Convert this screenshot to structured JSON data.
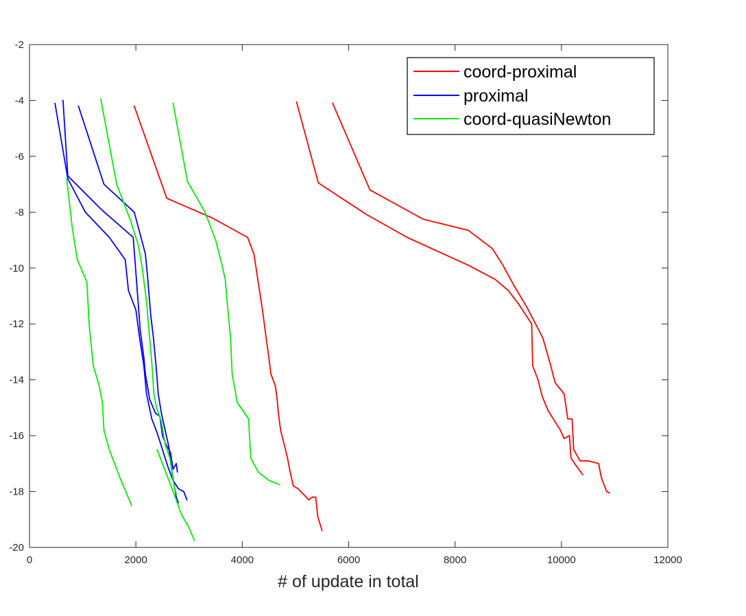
{
  "chart_data": {
    "type": "line",
    "title": "",
    "xlabel": "# of update in total",
    "ylabel": "",
    "xlim": [
      0,
      12000
    ],
    "ylim": [
      -20,
      -2
    ],
    "xticks": [
      0,
      2000,
      4000,
      6000,
      8000,
      10000,
      12000
    ],
    "yticks": [
      -2,
      -4,
      -6,
      -8,
      -10,
      -12,
      -14,
      -16,
      -18,
      -20
    ],
    "xtick_labels": [
      "0",
      "2000",
      "4000",
      "6000",
      "8000",
      "10000",
      "12000"
    ],
    "ytick_labels": [
      "-2",
      "-4",
      "-6",
      "-8",
      "-10",
      "-12",
      "-14",
      "-16",
      "-18",
      "-20"
    ],
    "grid": false,
    "legend_position": "top-right",
    "colors": {
      "coord-proximal": "#ff0000",
      "proximal": "#0000ff",
      "coord-quasiNewton": "#00ee00"
    },
    "series": [
      {
        "name": "coord-proximal",
        "color": "#ff0000",
        "points": [
          [
            1970,
            -4.2
          ],
          [
            2580,
            -7.5
          ],
          [
            3430,
            -8.2
          ],
          [
            4100,
            -8.9
          ],
          [
            4220,
            -9.5
          ],
          [
            4300,
            -10.5
          ],
          [
            4380,
            -11.5
          ],
          [
            4450,
            -12.5
          ],
          [
            4500,
            -13.2
          ],
          [
            4540,
            -13.8
          ],
          [
            4620,
            -14.2
          ],
          [
            4650,
            -14.6
          ],
          [
            4680,
            -15.2
          ],
          [
            4720,
            -15.8
          ],
          [
            4800,
            -16.4
          ],
          [
            4850,
            -16.8
          ],
          [
            4900,
            -17.3
          ],
          [
            4960,
            -17.8
          ],
          [
            5050,
            -17.9
          ],
          [
            5150,
            -18.1
          ],
          [
            5250,
            -18.3
          ],
          [
            5320,
            -18.2
          ],
          [
            5380,
            -18.2
          ],
          [
            5420,
            -18.9
          ],
          [
            5500,
            -19.4
          ]
        ]
      },
      {
        "name": "coord-proximal",
        "color": "#ff0000",
        "points": [
          [
            5020,
            -4.05
          ],
          [
            5430,
            -6.95
          ],
          [
            6350,
            -8.1
          ],
          [
            7100,
            -8.9
          ],
          [
            8250,
            -9.9
          ],
          [
            8750,
            -10.4
          ],
          [
            9000,
            -10.8
          ],
          [
            9200,
            -11.3
          ],
          [
            9440,
            -12.0
          ],
          [
            9460,
            -13.5
          ],
          [
            9560,
            -14.0
          ],
          [
            9640,
            -14.6
          ],
          [
            9750,
            -15.1
          ],
          [
            9880,
            -15.5
          ],
          [
            9980,
            -15.8
          ],
          [
            10050,
            -16.1
          ],
          [
            10150,
            -16.0
          ],
          [
            10180,
            -16.8
          ],
          [
            10250,
            -17.0
          ],
          [
            10400,
            -17.4
          ]
        ]
      },
      {
        "name": "coord-proximal",
        "color": "#ff0000",
        "points": [
          [
            5700,
            -4.1
          ],
          [
            6400,
            -7.2
          ],
          [
            7400,
            -8.25
          ],
          [
            8250,
            -8.65
          ],
          [
            8700,
            -9.3
          ],
          [
            8900,
            -9.9
          ],
          [
            9100,
            -10.6
          ],
          [
            9350,
            -11.4
          ],
          [
            9650,
            -12.5
          ],
          [
            9800,
            -13.5
          ],
          [
            9880,
            -14.1
          ],
          [
            10050,
            -14.5
          ],
          [
            10120,
            -15.4
          ],
          [
            10200,
            -15.4
          ],
          [
            10230,
            -16.5
          ],
          [
            10350,
            -16.9
          ],
          [
            10500,
            -16.9
          ],
          [
            10700,
            -17.0
          ],
          [
            10750,
            -17.5
          ],
          [
            10850,
            -18.0
          ],
          [
            10900,
            -18.05
          ]
        ]
      },
      {
        "name": "proximal",
        "color": "#0000ff",
        "points": [
          [
            480,
            -4.1
          ],
          [
            720,
            -6.8
          ],
          [
            1050,
            -8.0
          ],
          [
            1500,
            -8.9
          ],
          [
            1800,
            -9.7
          ],
          [
            1860,
            -10.8
          ],
          [
            2000,
            -11.5
          ],
          [
            2070,
            -12.5
          ],
          [
            2150,
            -13.5
          ],
          [
            2200,
            -14.5
          ],
          [
            2300,
            -15.4
          ],
          [
            2400,
            -15.9
          ],
          [
            2500,
            -16.5
          ],
          [
            2600,
            -17.1
          ],
          [
            2700,
            -17.6
          ],
          [
            2800,
            -17.9
          ],
          [
            2900,
            -18.0
          ],
          [
            2960,
            -18.3
          ]
        ]
      },
      {
        "name": "proximal",
        "color": "#0000ff",
        "points": [
          [
            630,
            -4.0
          ],
          [
            720,
            -6.7
          ],
          [
            1350,
            -7.9
          ],
          [
            1950,
            -8.9
          ],
          [
            2050,
            -11.4
          ],
          [
            2080,
            -12.2
          ],
          [
            2150,
            -13.2
          ],
          [
            2180,
            -13.8
          ],
          [
            2260,
            -14.7
          ],
          [
            2370,
            -15.2
          ],
          [
            2450,
            -15.3
          ],
          [
            2500,
            -16.0
          ],
          [
            2560,
            -16.3
          ],
          [
            2650,
            -16.6
          ],
          [
            2700,
            -17.2
          ],
          [
            2760,
            -17.0
          ],
          [
            2780,
            -17.3
          ]
        ]
      },
      {
        "name": "proximal",
        "color": "#0000ff",
        "points": [
          [
            920,
            -4.2
          ],
          [
            1400,
            -7.0
          ],
          [
            1970,
            -8.0
          ],
          [
            2180,
            -9.5
          ],
          [
            2220,
            -10.3
          ],
          [
            2280,
            -11.7
          ],
          [
            2330,
            -12.5
          ],
          [
            2380,
            -13.5
          ],
          [
            2420,
            -14.5
          ],
          [
            2480,
            -15.2
          ],
          [
            2550,
            -15.8
          ],
          [
            2620,
            -16.4
          ],
          [
            2680,
            -17.3
          ],
          [
            2760,
            -18.2
          ],
          [
            2800,
            -18.4
          ]
        ]
      },
      {
        "name": "coord-quasiNewton",
        "color": "#00ee00",
        "points": [
          [
            700,
            -6.8
          ],
          [
            800,
            -8.5
          ],
          [
            900,
            -9.7
          ],
          [
            1080,
            -10.5
          ],
          [
            1120,
            -12.0
          ],
          [
            1200,
            -13.5
          ],
          [
            1310,
            -14.2
          ],
          [
            1370,
            -14.8
          ],
          [
            1400,
            -15.8
          ],
          [
            1500,
            -16.5
          ],
          [
            1700,
            -17.5
          ],
          [
            1920,
            -18.5
          ]
        ]
      },
      {
        "name": "coord-quasiNewton",
        "color": "#00ee00",
        "points": [
          [
            1340,
            -3.95
          ],
          [
            1640,
            -7.0
          ],
          [
            1900,
            -8.3
          ],
          [
            2050,
            -9.2
          ],
          [
            2120,
            -10.0
          ],
          [
            2200,
            -11.2
          ],
          [
            2260,
            -12.5
          ],
          [
            2300,
            -13.4
          ],
          [
            2340,
            -14.5
          ],
          [
            2390,
            -15.0
          ],
          [
            2480,
            -15.5
          ],
          [
            2550,
            -16.3
          ],
          [
            2640,
            -16.8
          ],
          [
            2700,
            -17.6
          ],
          [
            2760,
            -18.1
          ]
        ]
      },
      {
        "name": "coord-quasiNewton",
        "color": "#00ee00",
        "points": [
          [
            2700,
            -4.1
          ],
          [
            2970,
            -6.9
          ],
          [
            3300,
            -8.0
          ],
          [
            3500,
            -9.0
          ],
          [
            3620,
            -9.9
          ],
          [
            3680,
            -10.4
          ],
          [
            3720,
            -11.3
          ],
          [
            3780,
            -12.5
          ],
          [
            3810,
            -13.8
          ],
          [
            3870,
            -14.4
          ],
          [
            3900,
            -14.8
          ],
          [
            4120,
            -15.4
          ],
          [
            4160,
            -16.8
          ],
          [
            4300,
            -17.3
          ],
          [
            4500,
            -17.6
          ],
          [
            4700,
            -17.75
          ]
        ]
      },
      {
        "name": "coord-quasiNewton",
        "color": "#00ee00",
        "points": [
          [
            2400,
            -16.5
          ],
          [
            2600,
            -17.5
          ],
          [
            2760,
            -18.3
          ],
          [
            2850,
            -18.8
          ],
          [
            3000,
            -19.3
          ],
          [
            3100,
            -19.75
          ]
        ]
      }
    ]
  }
}
